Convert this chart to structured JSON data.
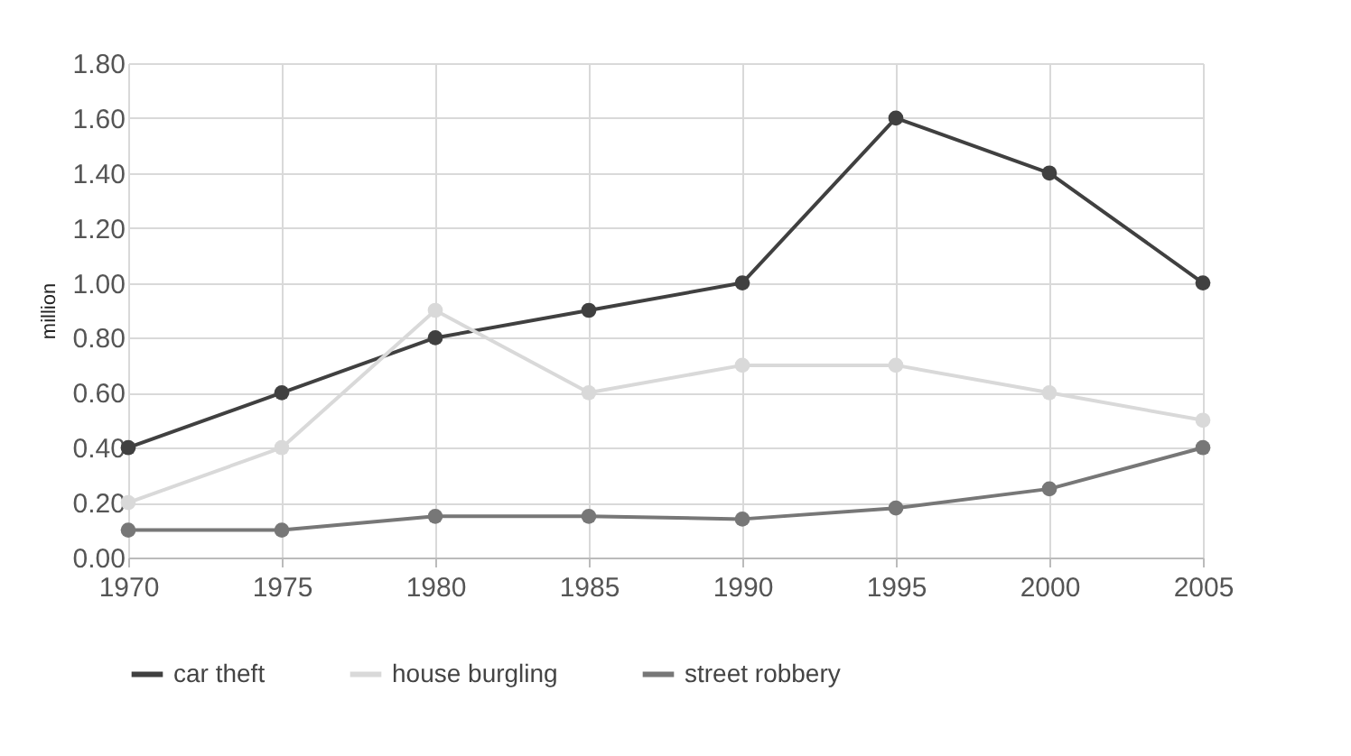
{
  "chart_data": {
    "type": "line",
    "ylabel": "million",
    "x": [
      1970,
      1975,
      1980,
      1985,
      1990,
      1995,
      2000,
      2005
    ],
    "series": [
      {
        "name": "car theft",
        "color": "#404040",
        "values": [
          0.4,
          0.6,
          0.8,
          0.9,
          1.0,
          1.6,
          1.4,
          1.0
        ]
      },
      {
        "name": "house burgling",
        "color": "#d9d9d9",
        "values": [
          0.2,
          0.4,
          0.9,
          0.6,
          0.7,
          0.7,
          0.6,
          0.5
        ]
      },
      {
        "name": "street robbery",
        "color": "#777777",
        "values": [
          0.1,
          0.1,
          0.15,
          0.15,
          0.14,
          0.18,
          0.25,
          0.4
        ]
      }
    ],
    "xlim": [
      1970,
      2005
    ],
    "xticks": [
      1970,
      1975,
      1980,
      1985,
      1990,
      1995,
      2000,
      2005
    ],
    "ylim": [
      0,
      1.8
    ],
    "yticks": [
      {
        "value": 0,
        "label": "0.00"
      },
      {
        "value": 0.2,
        "label": "0.20"
      },
      {
        "value": 0.4,
        "label": "0.40"
      },
      {
        "value": 0.6,
        "label": "0.60"
      },
      {
        "value": 0.8,
        "label": "0.80"
      },
      {
        "value": 1.0,
        "label": "1.00"
      },
      {
        "value": 1.2,
        "label": "1.20"
      },
      {
        "value": 1.4,
        "label": "1.40"
      },
      {
        "value": 1.6,
        "label": "1.60"
      },
      {
        "value": 1.8,
        "label": "1.80"
      }
    ],
    "grid": true,
    "legend": "bottom",
    "marker": "circle",
    "line_style": "solid"
  }
}
